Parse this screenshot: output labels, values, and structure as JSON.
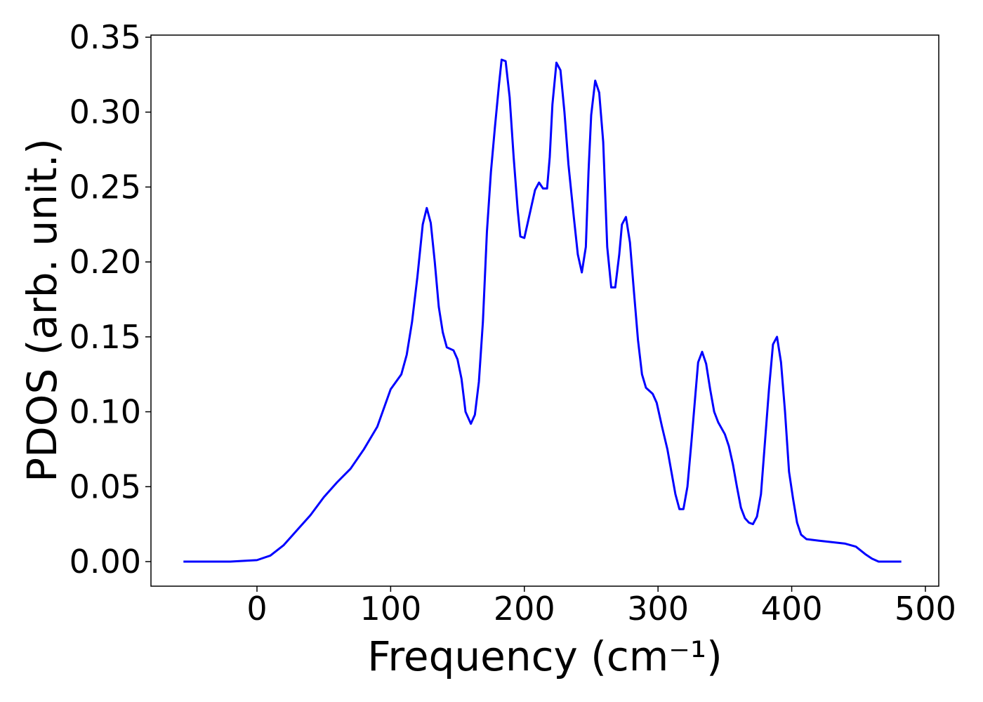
{
  "chart_data": {
    "type": "line",
    "x_label": "Frequency (cm⁻¹)",
    "y_label": "PDOS (arb. unit.)",
    "xlim": [
      -79.3,
      510
    ],
    "ylim": [
      -0.0164,
      0.3514
    ],
    "xticks": [
      0,
      100,
      200,
      300,
      400,
      500
    ],
    "yticks": [
      {
        "value": 0,
        "label": "0.00"
      },
      {
        "value": 0.05,
        "label": "0.05"
      },
      {
        "value": 0.1,
        "label": "0.10"
      },
      {
        "value": 0.15,
        "label": "0.15"
      },
      {
        "value": 0.2,
        "label": "0.20"
      },
      {
        "value": 0.25,
        "label": "0.25"
      },
      {
        "value": 0.3,
        "label": "0.30"
      },
      {
        "value": 0.35,
        "label": "0.35"
      }
    ],
    "grid": false,
    "series": [
      {
        "color": "#0000ff",
        "x": [
          -55,
          -20,
          0,
          10,
          20,
          30,
          40,
          50,
          60,
          70,
          80,
          90,
          100,
          108,
          112,
          116,
          120,
          124,
          127,
          130,
          133,
          136,
          139,
          142,
          147,
          150,
          153,
          156,
          160,
          163,
          166,
          169,
          172,
          175,
          178,
          181,
          183,
          186,
          189,
          192,
          195,
          197,
          200,
          203,
          208,
          211,
          214,
          217,
          219,
          221,
          224,
          227,
          230,
          233,
          237,
          240,
          243,
          246,
          248,
          250,
          253,
          256,
          259,
          262,
          265,
          268,
          271,
          273,
          276,
          279,
          282,
          285,
          288,
          291,
          296,
          299,
          303,
          307,
          310,
          313,
          316,
          319,
          322,
          325,
          328,
          330,
          333,
          336,
          339,
          342,
          345,
          350,
          353,
          356,
          359,
          362,
          365,
          368,
          371,
          374,
          377,
          380,
          383,
          386,
          389,
          392,
          395,
          398,
          401,
          404,
          407,
          411,
          420,
          440,
          448,
          455,
          460,
          465,
          482
        ],
        "values": [
          0,
          0,
          0.001,
          0.004,
          0.011,
          0.021,
          0.031,
          0.043,
          0.053,
          0.062,
          0.075,
          0.09,
          0.115,
          0.125,
          0.138,
          0.16,
          0.19,
          0.225,
          0.236,
          0.226,
          0.2,
          0.17,
          0.153,
          0.143,
          0.141,
          0.135,
          0.122,
          0.1,
          0.092,
          0.098,
          0.12,
          0.16,
          0.22,
          0.26,
          0.29,
          0.318,
          0.335,
          0.334,
          0.31,
          0.27,
          0.235,
          0.217,
          0.216,
          0.228,
          0.248,
          0.253,
          0.249,
          0.249,
          0.27,
          0.305,
          0.333,
          0.328,
          0.3,
          0.265,
          0.23,
          0.205,
          0.193,
          0.21,
          0.26,
          0.298,
          0.321,
          0.313,
          0.28,
          0.21,
          0.183,
          0.183,
          0.205,
          0.225,
          0.23,
          0.213,
          0.18,
          0.148,
          0.125,
          0.116,
          0.112,
          0.106,
          0.09,
          0.075,
          0.06,
          0.045,
          0.035,
          0.035,
          0.05,
          0.08,
          0.112,
          0.133,
          0.14,
          0.132,
          0.115,
          0.1,
          0.093,
          0.085,
          0.077,
          0.065,
          0.05,
          0.036,
          0.029,
          0.026,
          0.025,
          0.03,
          0.045,
          0.08,
          0.115,
          0.145,
          0.15,
          0.133,
          0.1,
          0.06,
          0.042,
          0.026,
          0.018,
          0.015,
          0.014,
          0.012,
          0.01,
          0.005,
          0.002,
          0,
          0
        ]
      }
    ]
  }
}
